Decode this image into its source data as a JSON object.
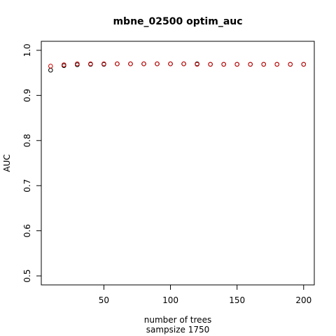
{
  "chart_data": {
    "type": "scatter",
    "title": "mbne_02500 optim_auc",
    "xlabel": "number of trees",
    "xsublabel": "sampsize 1750",
    "ylabel": "AUC",
    "xlim": [
      3,
      208
    ],
    "ylim": [
      0.48,
      1.02
    ],
    "xticks": [
      50,
      100,
      150,
      200
    ],
    "yticks": [
      0.5,
      0.6,
      0.7,
      0.8,
      0.9,
      1.0
    ],
    "ytick_labels": [
      "0.5",
      "0.6",
      "0.7",
      "0.8",
      "0.9",
      "1.0"
    ],
    "x": [
      10,
      20,
      30,
      40,
      50,
      60,
      70,
      80,
      90,
      100,
      110,
      120,
      130,
      140,
      150,
      160,
      170,
      180,
      190,
      200
    ],
    "series": [
      {
        "color": "#000000",
        "values": [
          0.956,
          0.966,
          0.968,
          0.969,
          0.969,
          0.97,
          0.97,
          0.97,
          0.97,
          0.97,
          0.97,
          0.97,
          0.969,
          0.969,
          0.969,
          0.969,
          0.969,
          0.969,
          0.969,
          0.969
        ]
      },
      {
        "color": "#cc0000",
        "values": [
          0.965,
          0.968,
          0.97,
          0.97,
          0.97,
          0.97,
          0.97,
          0.97,
          0.97,
          0.97,
          0.97,
          0.969,
          0.969,
          0.969,
          0.969,
          0.969,
          0.969,
          0.969,
          0.969,
          0.969
        ]
      }
    ],
    "grid": false,
    "legend": "none"
  }
}
